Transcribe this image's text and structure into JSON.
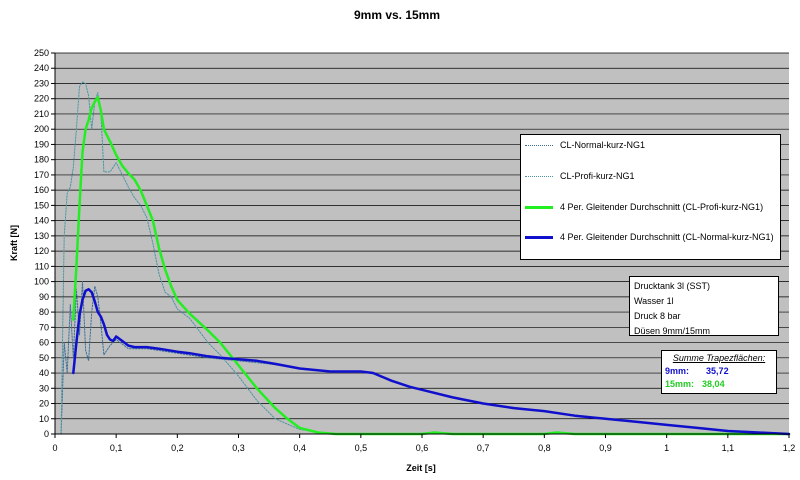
{
  "chart_data": {
    "type": "line",
    "title": "9mm vs. 15mm",
    "xlabel": "Zeit [s]",
    "ylabel": "Kraft [N]",
    "xlim": [
      0,
      1.2
    ],
    "ylim": [
      0,
      250
    ],
    "x_ticks": [
      "0",
      "0,1",
      "0,2",
      "0,3",
      "0,4",
      "0,5",
      "0,6",
      "0,7",
      "0,8",
      "0,9",
      "1",
      "1,1",
      "1,2"
    ],
    "y_ticks": [
      "0",
      "10",
      "20",
      "30",
      "40",
      "50",
      "60",
      "70",
      "80",
      "90",
      "100",
      "110",
      "120",
      "130",
      "140",
      "150",
      "160",
      "170",
      "180",
      "190",
      "200",
      "210",
      "220",
      "230",
      "240",
      "250"
    ],
    "grid": true,
    "legend_position": "right",
    "background_color": "#C0C0C0",
    "series": [
      {
        "name": "CL-Normal-kurz-NG1",
        "color": "#3A6E96",
        "style": "dotted",
        "width": 1,
        "points": [
          [
            0.0,
            0
          ],
          [
            0.01,
            0
          ],
          [
            0.015,
            60
          ],
          [
            0.02,
            40
          ],
          [
            0.025,
            85
          ],
          [
            0.03,
            50
          ],
          [
            0.035,
            95
          ],
          [
            0.04,
            65
          ],
          [
            0.045,
            100
          ],
          [
            0.05,
            55
          ],
          [
            0.055,
            48
          ],
          [
            0.06,
            80
          ],
          [
            0.065,
            97
          ],
          [
            0.07,
            90
          ],
          [
            0.075,
            72
          ],
          [
            0.08,
            52
          ],
          [
            0.09,
            58
          ],
          [
            0.1,
            62
          ],
          [
            0.12,
            56
          ],
          [
            0.15,
            56
          ],
          [
            0.2,
            53
          ],
          [
            0.25,
            50
          ],
          [
            0.3,
            48
          ],
          [
            0.35,
            46
          ],
          [
            0.4,
            43
          ],
          [
            0.45,
            41
          ],
          [
            0.5,
            41
          ],
          [
            0.52,
            40
          ],
          [
            0.55,
            35
          ],
          [
            0.6,
            29
          ],
          [
            0.7,
            20
          ],
          [
            0.8,
            15
          ],
          [
            0.9,
            10
          ],
          [
            1.0,
            6
          ],
          [
            1.1,
            2
          ],
          [
            1.2,
            0
          ]
        ]
      },
      {
        "name": "CL-Profi-kurz-NG1",
        "color": "#4A96A0",
        "style": "dotted",
        "width": 1,
        "points": [
          [
            0.0,
            0
          ],
          [
            0.01,
            0
          ],
          [
            0.015,
            130
          ],
          [
            0.02,
            158
          ],
          [
            0.025,
            162
          ],
          [
            0.03,
            175
          ],
          [
            0.035,
            200
          ],
          [
            0.04,
            228
          ],
          [
            0.045,
            231
          ],
          [
            0.05,
            230
          ],
          [
            0.055,
            222
          ],
          [
            0.06,
            200
          ],
          [
            0.065,
            218
          ],
          [
            0.07,
            224
          ],
          [
            0.075,
            210
          ],
          [
            0.08,
            172
          ],
          [
            0.09,
            172
          ],
          [
            0.1,
            178
          ],
          [
            0.11,
            170
          ],
          [
            0.12,
            162
          ],
          [
            0.13,
            155
          ],
          [
            0.14,
            150
          ],
          [
            0.15,
            142
          ],
          [
            0.16,
            125
          ],
          [
            0.17,
            105
          ],
          [
            0.18,
            93
          ],
          [
            0.19,
            90
          ],
          [
            0.2,
            82
          ],
          [
            0.22,
            76
          ],
          [
            0.25,
            60
          ],
          [
            0.27,
            52
          ],
          [
            0.3,
            38
          ],
          [
            0.33,
            22
          ],
          [
            0.36,
            10
          ],
          [
            0.4,
            3
          ],
          [
            0.45,
            0
          ],
          [
            1.2,
            0
          ]
        ]
      },
      {
        "name": "4 Per. Gleitender Durchschnitt (CL-Profi-kurz-NG1)",
        "color": "#22EE22",
        "style": "solid",
        "width": 2.5,
        "points": [
          [
            0.03,
            75
          ],
          [
            0.035,
            110
          ],
          [
            0.04,
            150
          ],
          [
            0.045,
            185
          ],
          [
            0.05,
            200
          ],
          [
            0.055,
            206
          ],
          [
            0.06,
            214
          ],
          [
            0.065,
            218
          ],
          [
            0.07,
            221
          ],
          [
            0.075,
            212
          ],
          [
            0.08,
            200
          ],
          [
            0.09,
            192
          ],
          [
            0.1,
            183
          ],
          [
            0.11,
            176
          ],
          [
            0.12,
            171
          ],
          [
            0.13,
            167
          ],
          [
            0.14,
            160
          ],
          [
            0.15,
            150
          ],
          [
            0.16,
            140
          ],
          [
            0.17,
            122
          ],
          [
            0.18,
            108
          ],
          [
            0.19,
            97
          ],
          [
            0.2,
            88
          ],
          [
            0.22,
            79
          ],
          [
            0.25,
            68
          ],
          [
            0.27,
            60
          ],
          [
            0.3,
            45
          ],
          [
            0.33,
            30
          ],
          [
            0.36,
            17
          ],
          [
            0.38,
            10
          ],
          [
            0.4,
            4
          ],
          [
            0.43,
            1
          ],
          [
            0.46,
            0
          ],
          [
            0.6,
            0
          ],
          [
            0.62,
            1
          ],
          [
            0.65,
            0
          ],
          [
            0.8,
            0
          ],
          [
            0.82,
            1
          ],
          [
            0.85,
            0
          ],
          [
            1.2,
            0
          ]
        ]
      },
      {
        "name": "4 Per. Gleitender Durchschnitt (CL-Normal-kurz-NG1)",
        "color": "#1010CC",
        "style": "solid",
        "width": 2.5,
        "points": [
          [
            0.03,
            40
          ],
          [
            0.035,
            60
          ],
          [
            0.04,
            78
          ],
          [
            0.045,
            88
          ],
          [
            0.05,
            94
          ],
          [
            0.055,
            95
          ],
          [
            0.06,
            93
          ],
          [
            0.065,
            87
          ],
          [
            0.07,
            80
          ],
          [
            0.075,
            77
          ],
          [
            0.08,
            72
          ],
          [
            0.085,
            65
          ],
          [
            0.09,
            62
          ],
          [
            0.095,
            61
          ],
          [
            0.1,
            64
          ],
          [
            0.11,
            61
          ],
          [
            0.12,
            58
          ],
          [
            0.13,
            57
          ],
          [
            0.15,
            57
          ],
          [
            0.17,
            56
          ],
          [
            0.2,
            54
          ],
          [
            0.22,
            53
          ],
          [
            0.25,
            51
          ],
          [
            0.27,
            50
          ],
          [
            0.3,
            49
          ],
          [
            0.33,
            48
          ],
          [
            0.36,
            46
          ],
          [
            0.4,
            43
          ],
          [
            0.45,
            41
          ],
          [
            0.5,
            41
          ],
          [
            0.52,
            40
          ],
          [
            0.55,
            35
          ],
          [
            0.58,
            31
          ],
          [
            0.6,
            29
          ],
          [
            0.65,
            24
          ],
          [
            0.7,
            20
          ],
          [
            0.75,
            17
          ],
          [
            0.8,
            15
          ],
          [
            0.85,
            12
          ],
          [
            0.9,
            10
          ],
          [
            0.95,
            8
          ],
          [
            1.0,
            6
          ],
          [
            1.05,
            4
          ],
          [
            1.1,
            2
          ],
          [
            1.15,
            1
          ],
          [
            1.2,
            0
          ]
        ]
      }
    ],
    "annotations": {
      "info_lines": [
        "Drucktank 3l (SST)",
        "Wasser 1l",
        "Druck 8 bar",
        "Düsen 9mm/15mm"
      ],
      "sum_title": "Summe Trapezflächen:",
      "sum_9mm_label": "9mm:",
      "sum_9mm_value": "35,72",
      "sum_9mm_color": "#1010CC",
      "sum_15mm_label": "15mm:",
      "sum_15mm_value": "38,04",
      "sum_15mm_color": "#22CC22"
    }
  }
}
